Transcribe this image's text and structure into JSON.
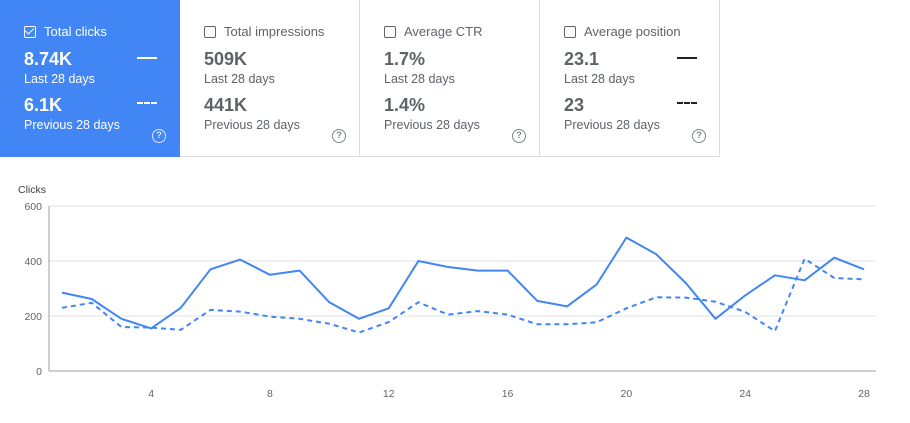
{
  "cards": [
    {
      "title": "Total clicks",
      "checked": true,
      "value_current": "8.74K",
      "label_current": "Last 28 days",
      "value_previous": "6.1K",
      "label_previous": "Previous 28 days"
    },
    {
      "title": "Total impressions",
      "checked": false,
      "value_current": "509K",
      "label_current": "Last 28 days",
      "value_previous": "441K",
      "label_previous": "Previous 28 days"
    },
    {
      "title": "Average CTR",
      "checked": false,
      "value_current": "1.7%",
      "label_current": "Last 28 days",
      "value_previous": "1.4%",
      "label_previous": "Previous 28 days"
    },
    {
      "title": "Average position",
      "checked": false,
      "value_current": "23.1",
      "label_current": "Last 28 days",
      "value_previous": "23",
      "label_previous": "Previous 28 days"
    }
  ],
  "help_glyph": "?",
  "colors": {
    "accent": "#4285f4",
    "text": "#5f6368",
    "grid": "#e0e0e0"
  },
  "chart_data": {
    "type": "line",
    "ylabel": "Clicks",
    "ylim": [
      0,
      600
    ],
    "yticks": [
      0,
      200,
      400,
      600
    ],
    "xticks": [
      4,
      8,
      12,
      16,
      20,
      24,
      28
    ],
    "xlim": [
      1,
      28
    ],
    "grid": true,
    "x": [
      1,
      2,
      3,
      4,
      5,
      6,
      7,
      8,
      9,
      10,
      11,
      12,
      13,
      14,
      15,
      16,
      17,
      18,
      19,
      20,
      21,
      22,
      23,
      24,
      25,
      26,
      27,
      28
    ],
    "series": [
      {
        "style": "solid",
        "values": [
          285,
          262,
          190,
          155,
          230,
          370,
          405,
          350,
          365,
          250,
          190,
          228,
          400,
          378,
          365,
          365,
          255,
          235,
          315,
          485,
          425,
          320,
          190,
          275,
          348,
          330,
          412,
          370
        ]
      },
      {
        "style": "dashed",
        "values": [
          230,
          248,
          160,
          158,
          150,
          222,
          216,
          198,
          190,
          172,
          140,
          178,
          250,
          205,
          218,
          205,
          170,
          170,
          177,
          228,
          268,
          267,
          252,
          215,
          145,
          408,
          338,
          333
        ]
      }
    ]
  }
}
